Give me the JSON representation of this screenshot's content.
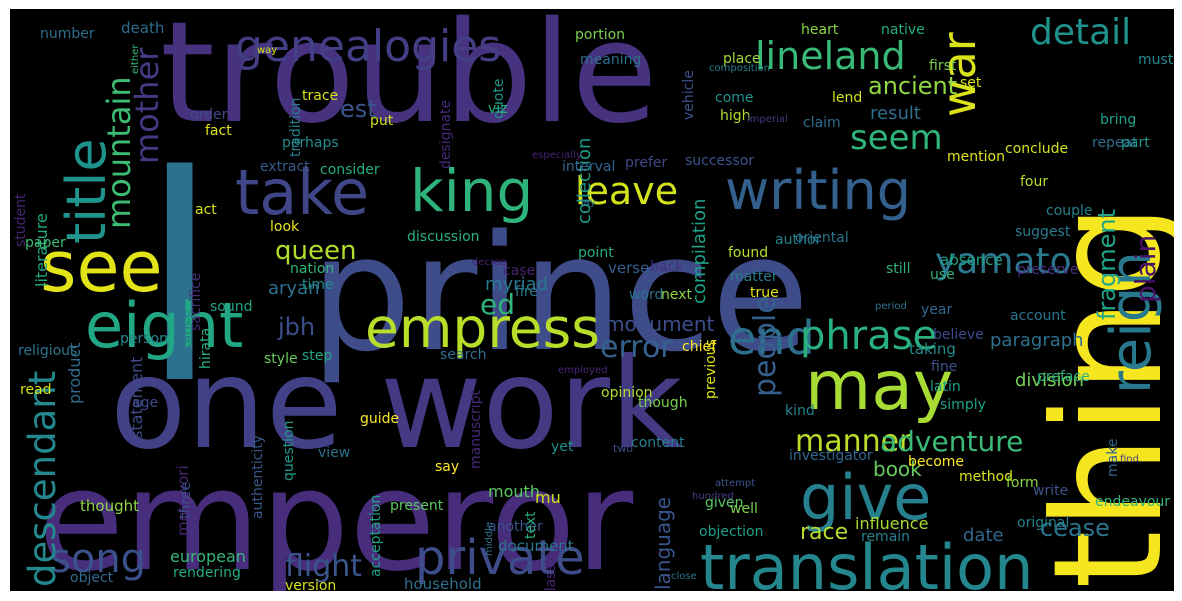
{
  "title": "Word cloud",
  "colors": {
    "background": "#000000",
    "frame": "#ffffff",
    "palette": [
      "#440154",
      "#482677",
      "#3e4a89",
      "#31688e",
      "#26828e",
      "#1f9e89",
      "#35b779",
      "#6ece58",
      "#b5de2b",
      "#fde725"
    ]
  },
  "words": [
    {
      "text": "trouble",
      "color": "#46327e"
    },
    {
      "text": "prince",
      "color": "#3e4c8a"
    },
    {
      "text": "emperor",
      "color": "#472d7b"
    },
    {
      "text": "one",
      "color": "#424086"
    },
    {
      "text": "work",
      "color": "#443a83"
    },
    {
      "text": "thing",
      "color": "#f6e620"
    },
    {
      "text": "l",
      "color": "#2c728e"
    },
    {
      "text": "translation",
      "color": "#24878e"
    },
    {
      "text": "give",
      "color": "#27808e"
    },
    {
      "text": "take",
      "color": "#3f4788"
    },
    {
      "text": "king",
      "color": "#2eb37c"
    },
    {
      "text": "writing",
      "color": "#34608d"
    },
    {
      "text": "see",
      "color": "#e3e418"
    },
    {
      "text": "eight",
      "color": "#22a785"
    },
    {
      "text": "title",
      "color": "#1f948c"
    },
    {
      "text": "empress",
      "color": "#b8de29"
    },
    {
      "text": "may",
      "color": "#a8db34"
    },
    {
      "text": "private",
      "color": "#3e4c8a"
    },
    {
      "text": "reign",
      "color": "#29798e"
    },
    {
      "text": "genealogies",
      "color": "#433e85"
    },
    {
      "text": "song",
      "color": "#3b518b"
    },
    {
      "text": "descendant",
      "color": "#23898e"
    },
    {
      "text": "end",
      "color": "#2d708e"
    },
    {
      "text": "phrase",
      "color": "#2ab07f"
    },
    {
      "text": "yamato",
      "color": "#2a778e"
    },
    {
      "text": "leave",
      "color": "#d2e21b"
    },
    {
      "text": "war",
      "color": "#dae319"
    },
    {
      "text": "lineland",
      "color": "#38b977"
    },
    {
      "text": "detail",
      "color": "#20928c"
    },
    {
      "text": "seem",
      "color": "#2fb47c"
    },
    {
      "text": "mountain",
      "color": "#3dbc74"
    },
    {
      "text": "mother",
      "color": "#443983"
    },
    {
      "text": "manner",
      "color": "#bade28"
    },
    {
      "text": "people",
      "color": "#355f8d"
    },
    {
      "text": "plain",
      "color": "#471164"
    },
    {
      "text": "adventure",
      "color": "#3aba76"
    },
    {
      "text": "flight",
      "color": "#39558c"
    },
    {
      "text": "error",
      "color": "#34618d"
    },
    {
      "text": "ed",
      "color": "#2fb47c"
    },
    {
      "text": "queen",
      "color": "#b0dd2f"
    },
    {
      "text": "jbh",
      "color": "#3d4e8a"
    },
    {
      "text": "fragment",
      "color": "#20a486"
    },
    {
      "text": "ancient",
      "color": "#90d743"
    },
    {
      "text": "est",
      "color": "#3a548c"
    },
    {
      "text": "cease",
      "color": "#2c738e"
    },
    {
      "text": "monument",
      "color": "#3d4e8a"
    },
    {
      "text": "paragraph",
      "color": "#2d708e"
    },
    {
      "text": "book",
      "color": "#65cb5e"
    },
    {
      "text": "division",
      "color": "#74d055"
    },
    {
      "text": "race",
      "color": "#b5de2b"
    },
    {
      "text": "language",
      "color": "#3a548c"
    },
    {
      "text": "date",
      "color": "#31688e"
    },
    {
      "text": "myriad",
      "color": "#2a788e"
    },
    {
      "text": "aryan",
      "color": "#2d718e"
    },
    {
      "text": "compilation",
      "color": "#1fa088"
    },
    {
      "text": "result",
      "color": "#2e6e8e"
    },
    {
      "text": "collection",
      "color": "#1f9a8a"
    },
    {
      "text": "influence",
      "color": "#a8db34"
    },
    {
      "text": "literature",
      "color": "#23a983"
    },
    {
      "text": "product",
      "color": "#2e6d8e"
    },
    {
      "text": "statement",
      "color": "#3e4a89"
    },
    {
      "text": "authenticity",
      "color": "#38588c"
    },
    {
      "text": "motowori",
      "color": "#482475"
    },
    {
      "text": "european",
      "color": "#37b878"
    },
    {
      "text": "acceptation",
      "color": "#1fa287"
    },
    {
      "text": "manuscript",
      "color": "#482878"
    },
    {
      "text": "document",
      "color": "#2b748e"
    },
    {
      "text": "household",
      "color": "#2d708e"
    },
    {
      "text": "rendering",
      "color": "#25ab82"
    },
    {
      "text": "version",
      "color": "#d8e219"
    },
    {
      "text": "object",
      "color": "#2f6c8e"
    },
    {
      "text": "thought",
      "color": "#8ed645"
    },
    {
      "text": "three",
      "color": "#3b518b"
    },
    {
      "text": "present",
      "color": "#5ec962"
    },
    {
      "text": "another",
      "color": "#3b528b"
    },
    {
      "text": "classic",
      "color": "#482576"
    },
    {
      "text": "mouth",
      "color": "#5ac864"
    },
    {
      "text": "mu",
      "color": "#d0e11c"
    },
    {
      "text": "text",
      "color": "#29af7f"
    },
    {
      "text": "yet",
      "color": "#1f948c"
    },
    {
      "text": "say",
      "color": "#fde725"
    },
    {
      "text": "content",
      "color": "#27808e"
    },
    {
      "text": "though",
      "color": "#7ad151"
    },
    {
      "text": "opinion",
      "color": "#b0dd2f"
    },
    {
      "text": "question",
      "color": "#1e9c89"
    },
    {
      "text": "view",
      "color": "#2c738e"
    },
    {
      "text": "step",
      "color": "#22a785"
    },
    {
      "text": "style",
      "color": "#69cd5b"
    },
    {
      "text": "guide",
      "color": "#fde725"
    },
    {
      "text": "search",
      "color": "#2e6e8e"
    },
    {
      "text": "religious",
      "color": "#2c738e"
    },
    {
      "text": "person",
      "color": "#24878e"
    },
    {
      "text": "read",
      "color": "#d5e21a"
    },
    {
      "text": "age",
      "color": "#3d4d8a"
    },
    {
      "text": "sound",
      "color": "#21a585"
    },
    {
      "text": "time",
      "color": "#228c8d"
    },
    {
      "text": "nation",
      "color": "#31b57b"
    },
    {
      "text": "hirata",
      "color": "#2db27d"
    },
    {
      "text": "instance",
      "color": "#2c728e"
    },
    {
      "text": "sacrifice",
      "color": "#472c7a"
    },
    {
      "text": "look",
      "color": "#e5e419"
    },
    {
      "text": "act",
      "color": "#d5e21a"
    },
    {
      "text": "paper",
      "color": "#3dbc74"
    },
    {
      "text": "student",
      "color": "#482475"
    },
    {
      "text": "fact",
      "color": "#dde318"
    },
    {
      "text": "order",
      "color": "#3e4a89"
    },
    {
      "text": "extract",
      "color": "#375a8c"
    },
    {
      "text": "consider",
      "color": "#27ad81"
    },
    {
      "text": "trace",
      "color": "#d8e219"
    },
    {
      "text": "tradition",
      "color": "#287d8e"
    },
    {
      "text": "put",
      "color": "#d0e11c"
    },
    {
      "text": "perhaps",
      "color": "#228b8d"
    },
    {
      "text": "quote",
      "color": "#1f948c"
    },
    {
      "text": "designate",
      "color": "#472a7a"
    },
    {
      "text": "viz",
      "color": "#2ab07f"
    },
    {
      "text": "discussion",
      "color": "#2ab07f"
    },
    {
      "text": "interval",
      "color": "#32658e"
    },
    {
      "text": "prefer",
      "color": "#3f4889"
    },
    {
      "text": "successor",
      "color": "#3a548c"
    },
    {
      "text": "found",
      "color": "#b8de29"
    },
    {
      "text": "point",
      "color": "#27ad81"
    },
    {
      "text": "case",
      "color": "#482173"
    },
    {
      "text": "fire",
      "color": "#2a788e"
    },
    {
      "text": "verse",
      "color": "#34608d"
    },
    {
      "text": "word",
      "color": "#2c738e"
    },
    {
      "text": "back",
      "color": "#46307e"
    },
    {
      "text": "next",
      "color": "#8bd646"
    },
    {
      "text": "previous",
      "color": "#d8e219"
    },
    {
      "text": "chief",
      "color": "#fde725"
    },
    {
      "text": "matter",
      "color": "#29798e"
    },
    {
      "text": "author",
      "color": "#25838e"
    },
    {
      "text": "true",
      "color": "#e5e419"
    },
    {
      "text": "oriental",
      "color": "#2c728e"
    },
    {
      "text": "still",
      "color": "#2fb47c"
    },
    {
      "text": "absence",
      "color": "#20a486"
    },
    {
      "text": "use",
      "color": "#32b67a"
    },
    {
      "text": "preserve",
      "color": "#472f7d"
    },
    {
      "text": "year",
      "color": "#31688e"
    },
    {
      "text": "account",
      "color": "#2b758e"
    },
    {
      "text": "taking",
      "color": "#238a8d"
    },
    {
      "text": "believe",
      "color": "#3e4a89"
    },
    {
      "text": "fine",
      "color": "#3b528b"
    },
    {
      "text": "preface",
      "color": "#2ab07f"
    },
    {
      "text": "latin",
      "color": "#1f9e89"
    },
    {
      "text": "simply",
      "color": "#1fa088"
    },
    {
      "text": "kind",
      "color": "#26828e"
    },
    {
      "text": "investigator",
      "color": "#31688e"
    },
    {
      "text": "become",
      "color": "#fde725"
    },
    {
      "text": "write",
      "color": "#3a548c"
    },
    {
      "text": "method",
      "color": "#dde318"
    },
    {
      "text": "form",
      "color": "#8bd646"
    },
    {
      "text": "make",
      "color": "#32658e"
    },
    {
      "text": "endeavour",
      "color": "#32b67a"
    },
    {
      "text": "original",
      "color": "#25838e"
    },
    {
      "text": "remain",
      "color": "#26818e"
    },
    {
      "text": "objection",
      "color": "#1f9e89"
    },
    {
      "text": "given",
      "color": "#5ec962"
    },
    {
      "text": "well",
      "color": "#7ad151"
    },
    {
      "text": "claim",
      "color": "#2e6e8e"
    },
    {
      "text": "mention",
      "color": "#e5e419"
    },
    {
      "text": "conclude",
      "color": "#d2e21b"
    },
    {
      "text": "repeat",
      "color": "#2f6c8e"
    },
    {
      "text": "part",
      "color": "#1f968b"
    },
    {
      "text": "bring",
      "color": "#1fa088"
    },
    {
      "text": "four",
      "color": "#b5de2b"
    },
    {
      "text": "couple",
      "color": "#277f8e"
    },
    {
      "text": "suggest",
      "color": "#297b8e"
    },
    {
      "text": "must",
      "color": "#24878e"
    },
    {
      "text": "set",
      "color": "#d8e219"
    },
    {
      "text": "first",
      "color": "#7ad151"
    },
    {
      "text": "native",
      "color": "#27ad81"
    },
    {
      "text": "heart",
      "color": "#8bd646"
    },
    {
      "text": "portion",
      "color": "#7ad151"
    },
    {
      "text": "meaning",
      "color": "#2d708e"
    },
    {
      "text": "place",
      "color": "#a0da39"
    },
    {
      "text": "come",
      "color": "#20928c"
    },
    {
      "text": "high",
      "color": "#b0dd2f"
    },
    {
      "text": "lend",
      "color": "#d2e21b"
    },
    {
      "text": "composition",
      "color": "#27808e"
    },
    {
      "text": "imperial",
      "color": "#443a83"
    },
    {
      "text": "vehicle",
      "color": "#3b518b"
    },
    {
      "text": "death",
      "color": "#2e6e8e"
    },
    {
      "text": "number",
      "color": "#2d708e"
    },
    {
      "text": "way",
      "color": "#d5e21a"
    },
    {
      "text": "either",
      "color": "#35b779"
    },
    {
      "text": "especially",
      "color": "#482475"
    },
    {
      "text": "lay",
      "color": "#2c728e"
    },
    {
      "text": "decree",
      "color": "#482173"
    },
    {
      "text": "employed",
      "color": "#482878"
    },
    {
      "text": "period",
      "color": "#2d718e"
    },
    {
      "text": "two",
      "color": "#3e4c8a"
    },
    {
      "text": "attempt",
      "color": "#3a548c"
    },
    {
      "text": "hundred",
      "color": "#433e85"
    },
    {
      "text": "find",
      "color": "#433e85"
    },
    {
      "text": "middle",
      "color": "#2c728e"
    },
    {
      "text": "close",
      "color": "#2d718e"
    },
    {
      "text": "denote",
      "color": "#482475"
    },
    {
      "text": "allow",
      "color": "#433e85"
    }
  ]
}
